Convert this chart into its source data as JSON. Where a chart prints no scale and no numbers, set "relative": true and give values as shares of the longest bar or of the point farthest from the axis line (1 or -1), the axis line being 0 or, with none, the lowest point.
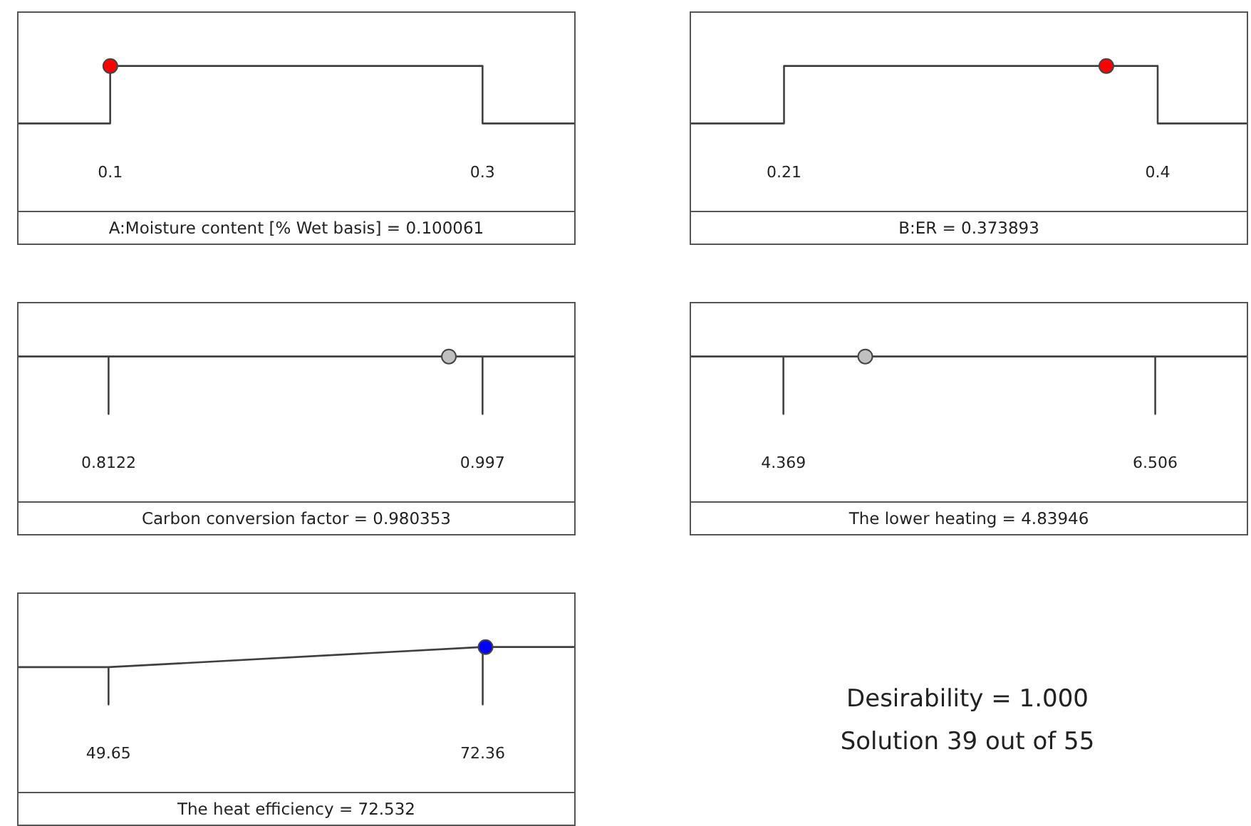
{
  "chart_data": [
    {
      "type": "line",
      "relative": true,
      "tick_labels": "x",
      "xlabel": "A:Moisture content [% Wet basis] = 0.100061",
      "xlim": [
        0.05,
        0.35
      ],
      "xticks": [
        0.1,
        0.3
      ],
      "series": [
        {
          "color": "#404040",
          "x": [
            0.05,
            0.1,
            0.1,
            0.3,
            0.3,
            0.35
          ],
          "values": [
            0,
            0,
            1,
            1,
            0,
            0
          ]
        },
        {
          "type": "scatter",
          "color": "#ff0000",
          "x": [
            0.100061
          ],
          "values": [
            1
          ]
        }
      ]
    },
    {
      "type": "line",
      "relative": true,
      "tick_labels": "x",
      "xlabel": "B:ER = 0.373893",
      "xlim": [
        0.162,
        0.446
      ],
      "xticks": [
        0.21,
        0.4
      ],
      "series": [
        {
          "color": "#404040",
          "x": [
            0.162,
            0.21,
            0.21,
            0.4,
            0.4,
            0.446
          ],
          "values": [
            0,
            0,
            1,
            1,
            0,
            0
          ]
        },
        {
          "type": "scatter",
          "color": "#ff0000",
          "x": [
            0.373893
          ],
          "values": [
            1
          ]
        }
      ]
    },
    {
      "type": "line",
      "relative": true,
      "tick_labels": "x",
      "xlabel": "Carbon conversion factor = 0.980353",
      "xlim": [
        0.767,
        1.043
      ],
      "xticks": [
        0.8122,
        0.997
      ],
      "series": [
        {
          "color": "#404040",
          "x": [
            0.767,
            0.8122,
            0.8122,
            0.8122,
            0.997,
            0.997,
            0.997,
            1.043
          ],
          "values": [
            1,
            1,
            0,
            1,
            1,
            0,
            1,
            1
          ]
        },
        {
          "type": "scatter",
          "color": "#c0c0c0",
          "x": [
            0.980353
          ],
          "values": [
            1
          ]
        }
      ]
    },
    {
      "type": "line",
      "relative": true,
      "tick_labels": "x",
      "xlabel": "The lower heating = 4.83946",
      "xlim": [
        3.83,
        7.04
      ],
      "xticks": [
        4.369,
        6.506
      ],
      "series": [
        {
          "color": "#404040",
          "x": [
            3.83,
            4.369,
            4.369,
            4.369,
            6.506,
            6.506,
            6.506,
            7.04
          ],
          "values": [
            1,
            1,
            0,
            1,
            1,
            0,
            1,
            1
          ]
        },
        {
          "type": "scatter",
          "color": "#c0c0c0",
          "x": [
            4.83946
          ],
          "values": [
            1
          ]
        }
      ]
    },
    {
      "type": "line",
      "relative": true,
      "tick_labels": "x",
      "xlabel": "The heat efficiency  = 72.532",
      "xlim": [
        44.1,
        78.0
      ],
      "xticks": [
        49.65,
        72.36
      ],
      "series": [
        {
          "color": "#404040",
          "x": [
            44.1,
            49.65,
            49.65,
            49.65,
            72.36,
            72.36,
            72.36,
            78.0
          ],
          "values": [
            0.65,
            0.65,
            0,
            0.65,
            1,
            0,
            1,
            1
          ]
        },
        {
          "type": "scatter",
          "color": "#0000ff",
          "x": [
            72.532
          ],
          "values": [
            1
          ]
        }
      ]
    },
    {
      "type": "other",
      "annotations": [
        "Desirability = 1.000",
        "Solution 39 out of 55"
      ]
    }
  ]
}
